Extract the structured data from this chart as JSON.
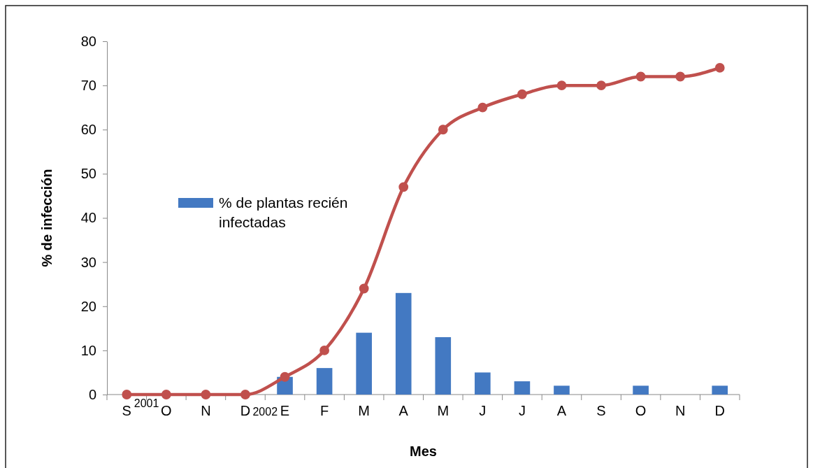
{
  "chart_data": {
    "type": "bar",
    "xlabel": "Mes",
    "ylabel": "% de infección",
    "categories": [
      "S",
      "O",
      "N",
      "D",
      "E",
      "F",
      "M",
      "A",
      "M",
      "J",
      "J",
      "A",
      "S",
      "O",
      "N",
      "D"
    ],
    "series": [
      {
        "name": "% de plantas recién infectadas",
        "color": "#4379c2",
        "values": [
          0,
          0,
          0,
          0,
          4,
          6,
          14,
          23,
          13,
          5,
          3,
          2,
          0,
          2,
          0,
          2
        ]
      },
      {
        "type": "line",
        "color": "#c0504d",
        "marker": "circle",
        "values": [
          0,
          0,
          0,
          0,
          4,
          10,
          24,
          47,
          60,
          65,
          68,
          70,
          70,
          72,
          72,
          74
        ]
      }
    ],
    "ylim": [
      0,
      80
    ],
    "yticks": [
      0,
      10,
      20,
      30,
      40,
      50,
      60,
      70,
      80
    ],
    "legend": "left",
    "annotations": [
      "2001",
      "2002"
    ]
  }
}
